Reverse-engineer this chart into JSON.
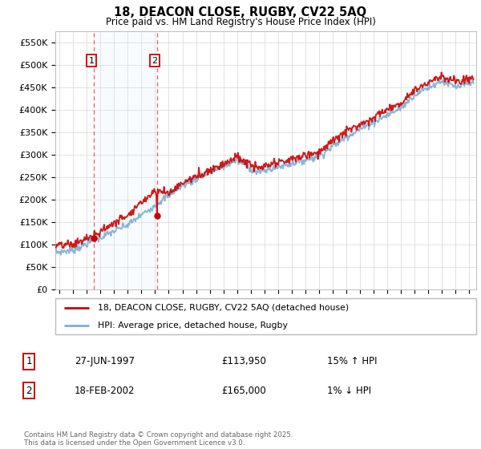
{
  "title": "18, DEACON CLOSE, RUGBY, CV22 5AQ",
  "subtitle": "Price paid vs. HM Land Registry's House Price Index (HPI)",
  "ylabel_ticks": [
    "£0",
    "£50K",
    "£100K",
    "£150K",
    "£200K",
    "£250K",
    "£300K",
    "£350K",
    "£400K",
    "£450K",
    "£500K",
    "£550K"
  ],
  "ytick_values": [
    0,
    50000,
    100000,
    150000,
    200000,
    250000,
    300000,
    350000,
    400000,
    450000,
    500000,
    550000
  ],
  "ylim": [
    0,
    575000
  ],
  "xlim_start": 1994.7,
  "xlim_end": 2025.5,
  "sale1_date": 1997.49,
  "sale1_price": 113950,
  "sale2_date": 2002.13,
  "sale2_price": 165000,
  "legend_line1": "18, DEACON CLOSE, RUGBY, CV22 5AQ (detached house)",
  "legend_line2": "HPI: Average price, detached house, Rugby",
  "table_row1": [
    "1",
    "27-JUN-1997",
    "£113,950",
    "15% ↑ HPI"
  ],
  "table_row2": [
    "2",
    "18-FEB-2002",
    "£165,000",
    "1% ↓ HPI"
  ],
  "footer": "Contains HM Land Registry data © Crown copyright and database right 2025.\nThis data is licensed under the Open Government Licence v3.0.",
  "color_red": "#cc0000",
  "color_blue": "#7aafd4",
  "color_blue_fill": "#dce9f5",
  "color_dashed": "#dd4444",
  "grid_color": "#dddddd",
  "sale_dot_color": "#cc0000"
}
